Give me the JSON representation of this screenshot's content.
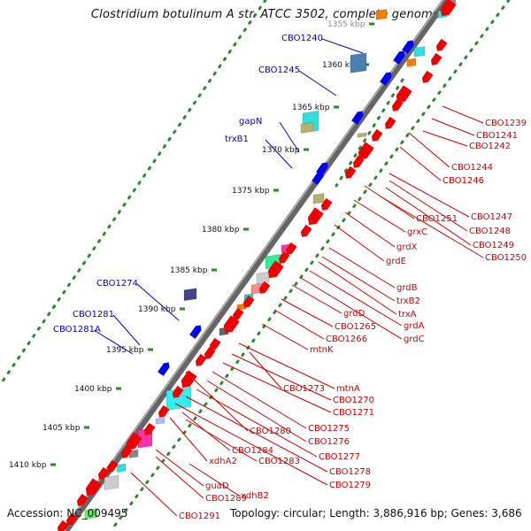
{
  "title": "Clostridium botulinum A str. ATCC 3502, complete genome",
  "footer": {
    "accession": "Accession: NC_009495",
    "topology": "Topology: circular; Length: 3,886,916 bp; Genes: 3,686"
  },
  "colors": {
    "backbone": "#666666",
    "forward_arrow": "#0000ee",
    "reverse_arrow": "#ee0000",
    "forward_label": "#0000cc",
    "reverse_label": "#d00000",
    "dots": "#2a8a2a",
    "tick": "#2a8a2a"
  },
  "scale_labels": [
    "1355 kbp",
    "1360 kbp",
    "1365 kbp",
    "1370 kbp",
    "1375 kbp",
    "1380 kbp",
    "1385 kbp",
    "1390 kbp",
    "1395 kbp",
    "1400 kbp",
    "1405 kbp",
    "1410 kbp"
  ],
  "forward_labels": [
    "CBO1240",
    "CBO1245",
    "gapN",
    "trxB1",
    "CBO1274",
    "CBO1281",
    "CBO1281A"
  ],
  "reverse_labels": [
    "CBO1239",
    "CBO1241",
    "CBO1242",
    "CBO1244",
    "CBO1246",
    "CBO1247",
    "CBO1248",
    "CBO1249",
    "CBO1250",
    "CBO1251",
    "grxC",
    "grdX",
    "grdE",
    "grdB",
    "trxB2",
    "trxA",
    "grdA",
    "grdC",
    "grdD",
    "CBO1265",
    "CBO1266",
    "mtnK",
    "CBO1273",
    "mtnA",
    "CBO1270",
    "CBO1271",
    "CBO1275",
    "CBO1276",
    "CBO1277",
    "CBO1278",
    "CBO1279",
    "CBO1280",
    "CBO1284",
    "xdhA2",
    "CBO1283",
    "guaD",
    "xdhB2",
    "CBO1289",
    "CBO1291"
  ]
}
